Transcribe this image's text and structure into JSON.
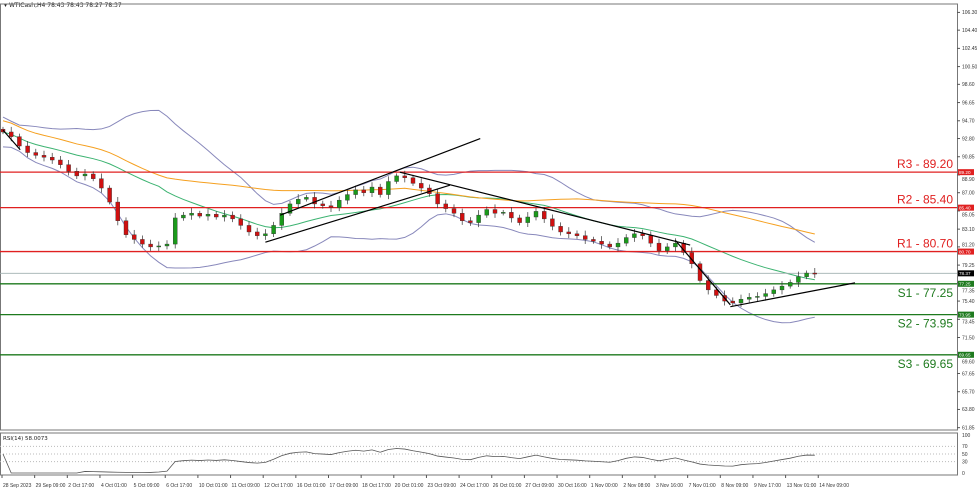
{
  "header": {
    "symbol": "WTICash,H4",
    "ohlc": "78.43 78.43 78.27 78.37",
    "menu_icon": "triangle-down-icon"
  },
  "chart_data": {
    "type": "candlestick",
    "title": "WTICash,H4",
    "ylim": [
      61.6,
      107.2
    ],
    "y_ticks": [
      "106.30",
      "104.40",
      "102.45",
      "100.50",
      "98.60",
      "96.65",
      "94.70",
      "92.80",
      "90.85",
      "88.90",
      "87.00",
      "85.05",
      "83.10",
      "81.20",
      "79.25",
      "77.35",
      "75.40",
      "73.45",
      "71.50",
      "69.60",
      "67.65",
      "65.70",
      "63.80",
      "61.85"
    ],
    "x_ticks": [
      "28 Sep 2023",
      "29 Sep 09:00",
      "2 Oct 17:00",
      "4 Oct 01:00",
      "5 Oct 09:00",
      "6 Oct 17:00",
      "10 Oct 01:00",
      "11 Oct 09:00",
      "12 Oct 17:00",
      "16 Oct 01:00",
      "17 Oct 09:00",
      "18 Oct 17:00",
      "20 Oct 01:00",
      "23 Oct 09:00",
      "24 Oct 17:00",
      "26 Oct 01:00",
      "27 Oct 09:00",
      "30 Oct 16:00",
      "1 Nov 00:00",
      "2 Nov 08:00",
      "3 Nov 16:00",
      "7 Nov 01:00",
      "8 Nov 09:00",
      "9 Nov 17:00",
      "13 Nov 01:00",
      "14 Nov 09:00"
    ],
    "closes": [
      93.5,
      93,
      92,
      91.3,
      91,
      90.8,
      90.5,
      90,
      89.3,
      88.8,
      89,
      88.5,
      87.5,
      86,
      84,
      82.5,
      82,
      81.5,
      81.2,
      81.3,
      81.5,
      84.3,
      84.6,
      84.8,
      84.5,
      84.7,
      84.4,
      84.6,
      84.2,
      83.5,
      82.8,
      82.4,
      82.6,
      83.5,
      84.8,
      85.8,
      86.3,
      86.5,
      85.8,
      85.6,
      85.4,
      86.2,
      86.8,
      87.3,
      87.0,
      87.6,
      86.8,
      88.2,
      88.8,
      88.6,
      88.0,
      87.5,
      86.9,
      85.8,
      85.3,
      84.8,
      84.0,
      83.8,
      84.6,
      85.2,
      84.8,
      84.9,
      84.3,
      83.8,
      84.4,
      85.0,
      84.2,
      83.4,
      82.8,
      82.6,
      82.4,
      82.0,
      81.8,
      81.5,
      81.2,
      81.6,
      82.2,
      82.6,
      82.4,
      81.6,
      80.8,
      81.2,
      81.6,
      80.6,
      79.4,
      77.6,
      76.6,
      76.0,
      75.4,
      75.2,
      75.6,
      75.8,
      75.9,
      76.2,
      76.6,
      77.0,
      77.4,
      78.0,
      78.4,
      78.37
    ],
    "current_price": 78.37,
    "levels": [
      {
        "label": "R3 - 89.20",
        "value": 89.2,
        "tag": "89.20",
        "kind": "resistance"
      },
      {
        "label": "R2 - 85.40",
        "value": 85.4,
        "tag": "85.40",
        "kind": "resistance"
      },
      {
        "label": "R1 - 80.70",
        "value": 80.7,
        "tag": "80.70",
        "kind": "resistance"
      },
      {
        "label": "S1 - 77.25",
        "value": 77.25,
        "tag": "77.25",
        "kind": "support"
      },
      {
        "label": "S2 - 73.95",
        "value": 73.95,
        "tag": "73.95",
        "kind": "support"
      },
      {
        "label": "S3 - 69.65",
        "value": 69.65,
        "tag": "69.65",
        "kind": "support"
      }
    ],
    "trendlines": [
      [
        [
          0,
          93.7
        ],
        [
          2.1,
          91.6
        ]
      ],
      [
        [
          32,
          81.7
        ],
        [
          54.5,
          87.8
        ]
      ],
      [
        [
          33.8,
          84.6
        ],
        [
          58.2,
          92.8
        ]
      ],
      [
        [
          48.4,
          89.2
        ],
        [
          83.8,
          81.4
        ]
      ],
      [
        [
          82,
          81.9
        ],
        [
          88.7,
          75.0
        ]
      ],
      [
        [
          88.7,
          74.8
        ],
        [
          103.9,
          77.35
        ]
      ]
    ],
    "indicators": {
      "bollinger": "Bollinger Bands (20)",
      "ma_fast": "MA 20",
      "ma_slow": "MA 50"
    },
    "rsi": {
      "label": "RSI(14) 58.0073",
      "period": 14,
      "ticks": [
        "100",
        "70",
        "50",
        "30",
        "0"
      ],
      "levels": [
        70,
        50,
        30
      ]
    },
    "colors": {
      "resistance": "#e02020",
      "support": "#1e7a1e",
      "bull": "#1a9a1a",
      "bear": "#d01010",
      "bands": "#8888bb",
      "ma_fast": "#3cb371",
      "ma_slow": "#f5a020",
      "price_line": "#a0b0b0",
      "trend": "#000000"
    },
    "grid": false
  }
}
